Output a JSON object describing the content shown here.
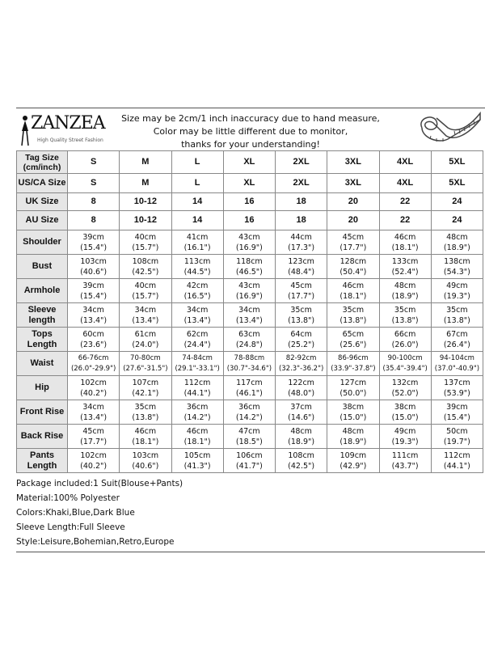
{
  "brand": {
    "name": "ZANZEA",
    "tagline": "High Quality Street Fashion"
  },
  "notice": [
    "Size may be 2cm/1 inch inaccuracy due to hand measure,",
    "Color may be little different due to monitor,",
    "thanks for your understanding!"
  ],
  "size_rows": [
    {
      "label": "Tag Size (cm/inch)",
      "values": [
        "S",
        "M",
        "L",
        "XL",
        "2XL",
        "3XL",
        "4XL",
        "5XL"
      ]
    },
    {
      "label": "US/CA Size",
      "values": [
        "S",
        "M",
        "L",
        "XL",
        "2XL",
        "3XL",
        "4XL",
        "5XL"
      ]
    },
    {
      "label": "UK Size",
      "values": [
        "8",
        "10-12",
        "14",
        "16",
        "18",
        "20",
        "22",
        "24"
      ]
    },
    {
      "label": "AU Size",
      "values": [
        "8",
        "10-12",
        "14",
        "16",
        "18",
        "20",
        "22",
        "24"
      ]
    }
  ],
  "measure_rows": [
    {
      "label": "Shoulder",
      "cm": [
        "39cm",
        "40cm",
        "41cm",
        "43cm",
        "44cm",
        "45cm",
        "46cm",
        "48cm"
      ],
      "in": [
        "(15.4\")",
        "(15.7\")",
        "(16.1\")",
        "(16.9\")",
        "(17.3\")",
        "(17.7\")",
        "(18.1\")",
        "(18.9\")"
      ]
    },
    {
      "label": "Bust",
      "cm": [
        "103cm",
        "108cm",
        "113cm",
        "118cm",
        "123cm",
        "128cm",
        "133cm",
        "138cm"
      ],
      "in": [
        "(40.6\")",
        "(42.5\")",
        "(44.5\")",
        "(46.5\")",
        "(48.4\")",
        "(50.4\")",
        "(52.4\")",
        "(54.3\")"
      ]
    },
    {
      "label": "Armhole",
      "cm": [
        "39cm",
        "40cm",
        "42cm",
        "43cm",
        "45cm",
        "46cm",
        "48cm",
        "49cm"
      ],
      "in": [
        "(15.4\")",
        "(15.7\")",
        "(16.5\")",
        "(16.9\")",
        "(17.7\")",
        "(18.1\")",
        "(18.9\")",
        "(19.3\")"
      ]
    },
    {
      "label": "Sleeve length",
      "cm": [
        "34cm",
        "34cm",
        "34cm",
        "34cm",
        "35cm",
        "35cm",
        "35cm",
        "35cm"
      ],
      "in": [
        "(13.4\")",
        "(13.4\")",
        "(13.4\")",
        "(13.4\")",
        "(13.8\")",
        "(13.8\")",
        "(13.8\")",
        "(13.8\")"
      ]
    },
    {
      "label": "Tops Length",
      "cm": [
        "60cm",
        "61cm",
        "62cm",
        "63cm",
        "64cm",
        "65cm",
        "66cm",
        "67cm"
      ],
      "in": [
        "(23.6\")",
        "(24.0\")",
        "(24.4\")",
        "(24.8\")",
        "(25.2\")",
        "(25.6\")",
        "(26.0\")",
        "(26.4\")"
      ]
    },
    {
      "label": "Waist",
      "cm": [
        "66-76cm",
        "70-80cm",
        "74-84cm",
        "78-88cm",
        "82-92cm",
        "86-96cm",
        "90-100cm",
        "94-104cm"
      ],
      "in": [
        "(26.0\"-29.9\")",
        "(27.6\"-31.5\")",
        "(29.1\"-33.1\")",
        "(30.7\"-34.6\")",
        "(32.3\"-36.2\")",
        "(33.9\"-37.8\")",
        "(35.4\"-39.4\")",
        "(37.0\"-40.9\")"
      ]
    },
    {
      "label": "Hip",
      "cm": [
        "102cm",
        "107cm",
        "112cm",
        "117cm",
        "122cm",
        "127cm",
        "132cm",
        "137cm"
      ],
      "in": [
        "(40.2\")",
        "(42.1\")",
        "(44.1\")",
        "(46.1\")",
        "(48.0\")",
        "(50.0\")",
        "(52.0\")",
        "(53.9\")"
      ]
    },
    {
      "label": "Front Rise",
      "cm": [
        "34cm",
        "35cm",
        "36cm",
        "36cm",
        "37cm",
        "38cm",
        "38cm",
        "39cm"
      ],
      "in": [
        "(13.4\")",
        "(13.8\")",
        "(14.2\")",
        "(14.2\")",
        "(14.6\")",
        "(15.0\")",
        "(15.0\")",
        "(15.4\")"
      ]
    },
    {
      "label": "Back Rise",
      "cm": [
        "45cm",
        "46cm",
        "46cm",
        "47cm",
        "48cm",
        "48cm",
        "49cm",
        "50cm"
      ],
      "in": [
        "(17.7\")",
        "(18.1\")",
        "(18.1\")",
        "(18.5\")",
        "(18.9\")",
        "(18.9\")",
        "(19.3\")",
        "(19.7\")"
      ]
    },
    {
      "label": "Pants Length",
      "cm": [
        "102cm",
        "103cm",
        "105cm",
        "106cm",
        "108cm",
        "109cm",
        "111cm",
        "112cm"
      ],
      "in": [
        "(40.2\")",
        "(40.6\")",
        "(41.3\")",
        "(41.7\")",
        "(42.5\")",
        "(42.9\")",
        "(43.7\")",
        "(44.1\")"
      ]
    }
  ],
  "notes": [
    "Package included:1 Suit(Blouse+Pants)",
    "Material:100% Polyester",
    "Colors:Khaki,Blue,Dark Blue",
    "Sleeve Length:Full Sleeve",
    "Style:Leisure,Bohemian,Retro,Europe"
  ]
}
